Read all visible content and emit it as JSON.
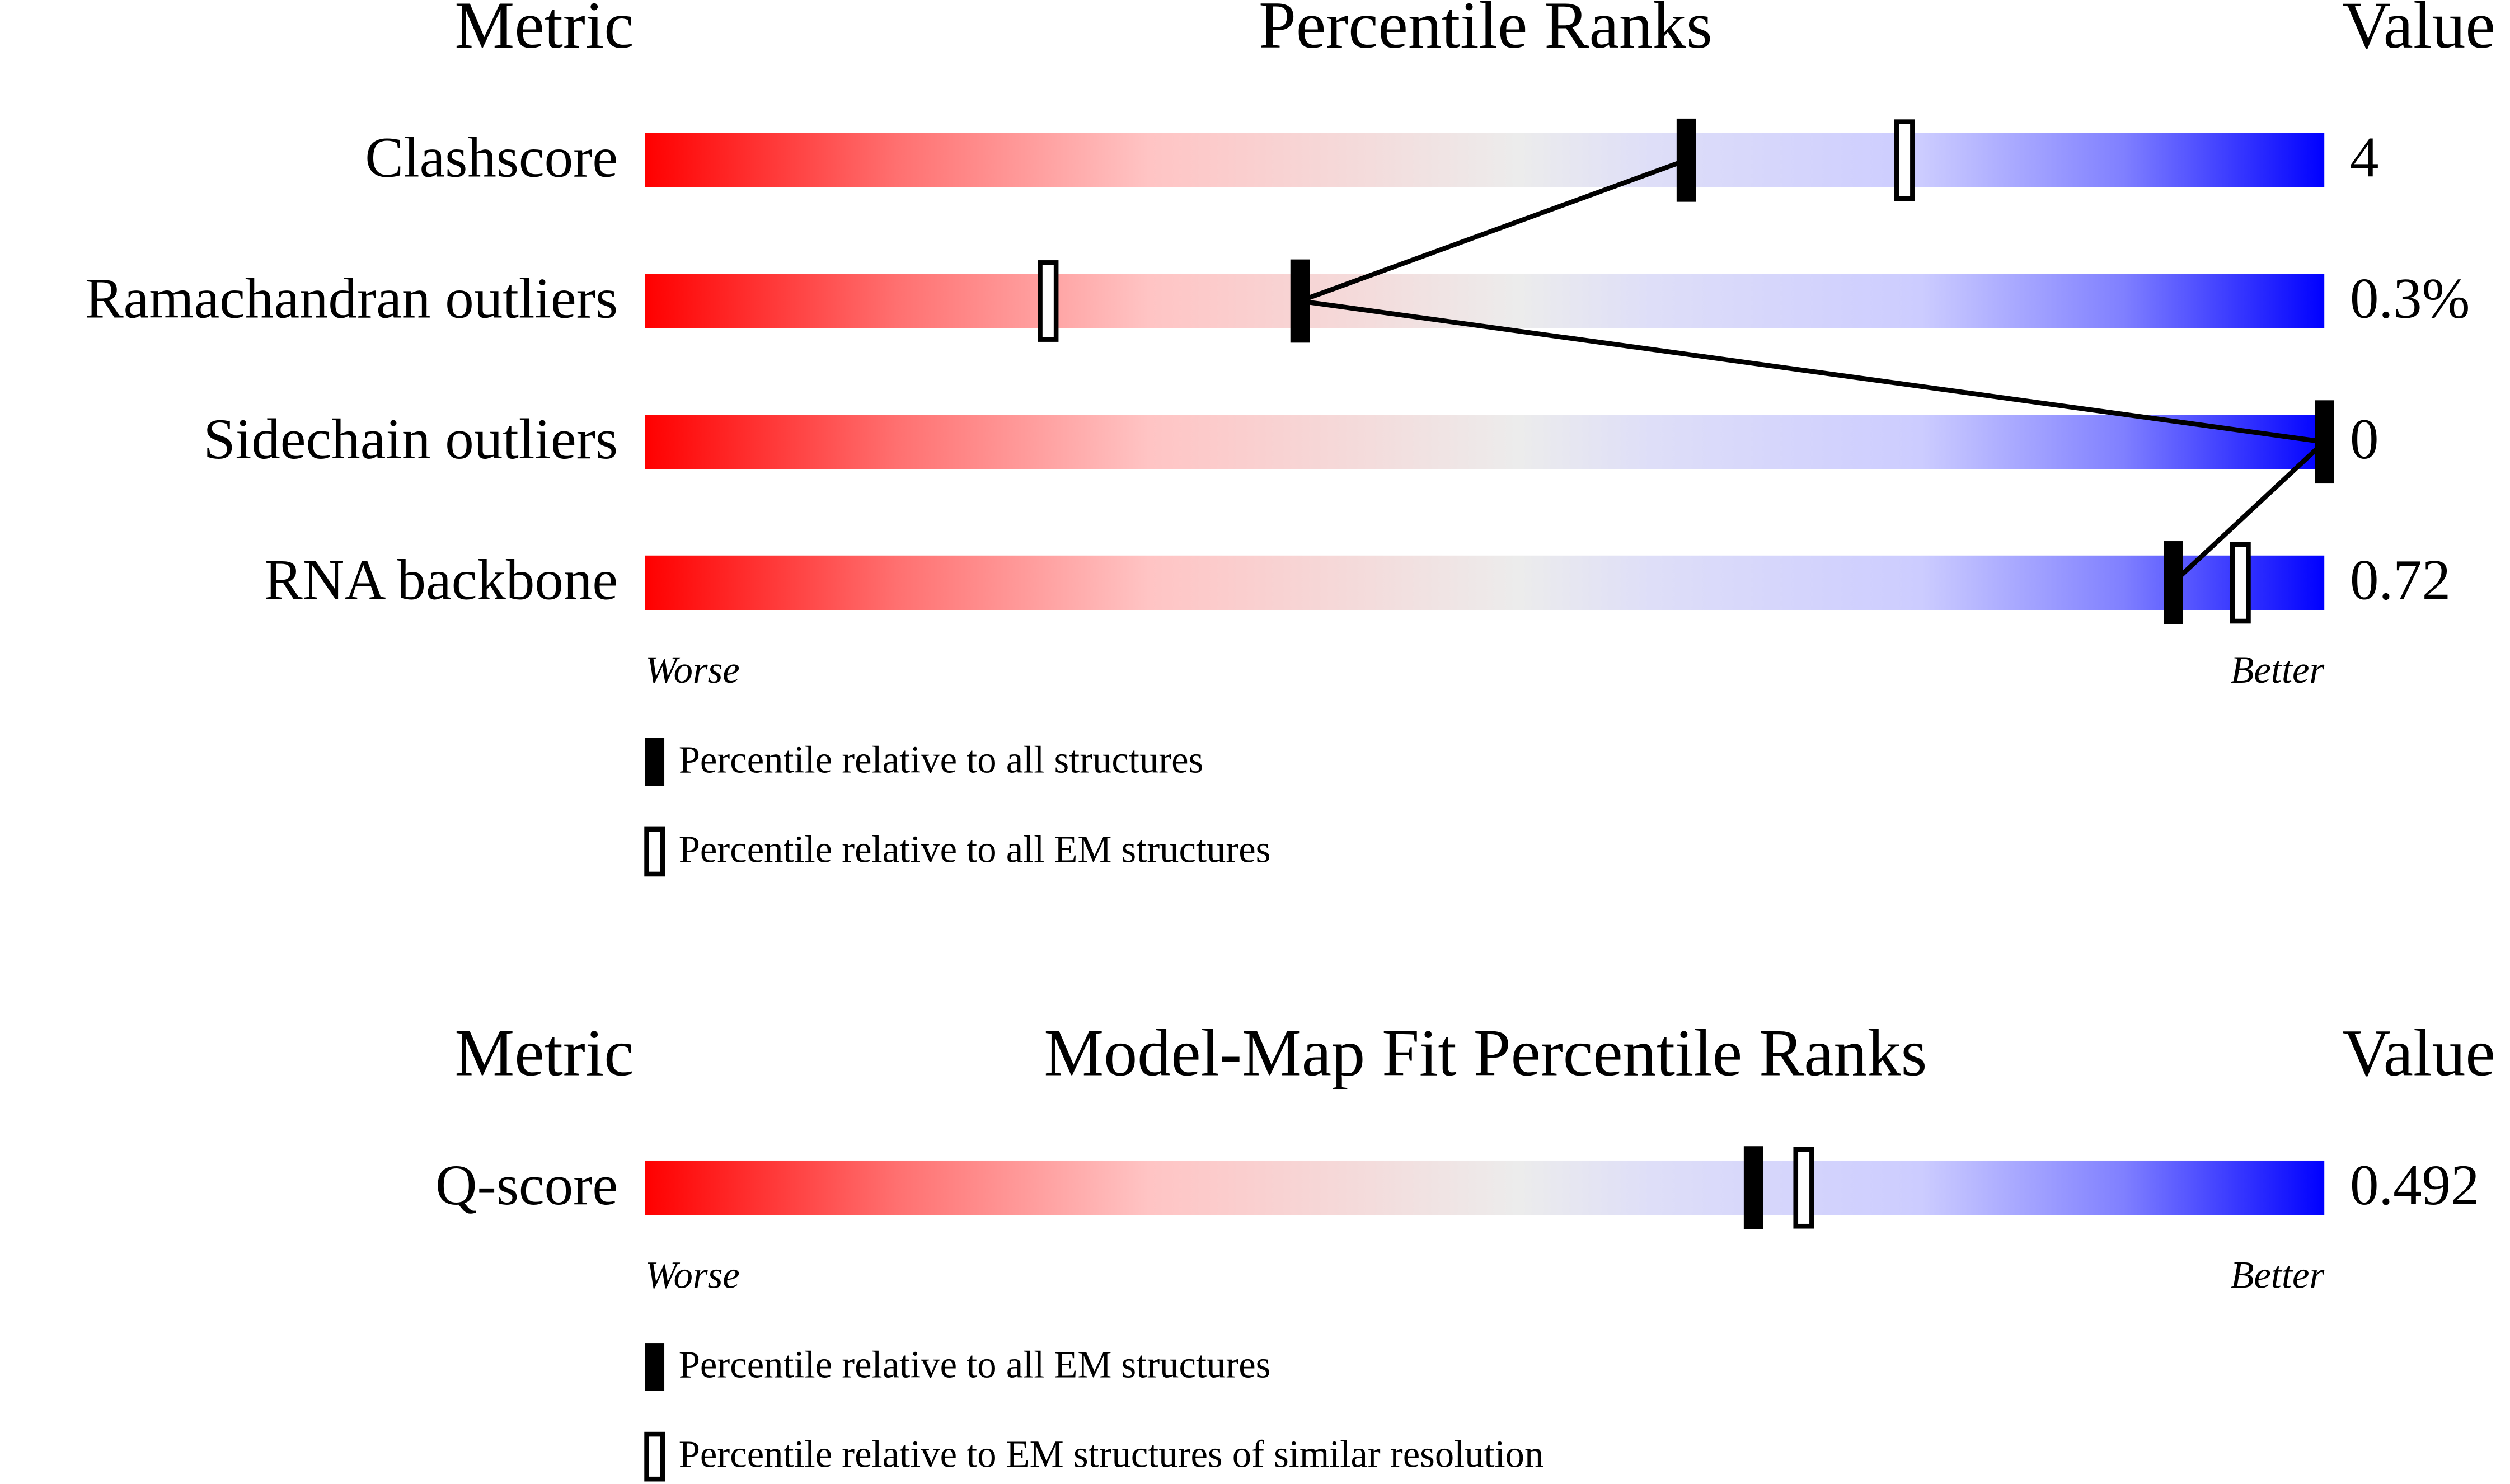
{
  "panels": [
    {
      "headers": {
        "metric": "Metric",
        "title": "Percentile Ranks",
        "value": "Value"
      },
      "xlim": [
        0,
        100
      ],
      "rows": [
        {
          "metric": "Clashscore",
          "value": "4",
          "percentile_filled": 62,
          "percentile_open": 75
        },
        {
          "metric": "Ramachandran outliers",
          "value": "0.3%",
          "percentile_filled": 39,
          "percentile_open": 24
        },
        {
          "metric": "Sidechain outliers",
          "value": "0",
          "percentile_filled": 100,
          "percentile_open": null
        },
        {
          "metric": "RNA backbone",
          "value": "0.72",
          "percentile_filled": 91,
          "percentile_open": 95
        }
      ],
      "worse": "Worse",
      "better": "Better",
      "legend": {
        "filled": "Percentile relative to all structures",
        "open": "Percentile relative to all EM structures"
      }
    },
    {
      "headers": {
        "metric": "Metric",
        "title": "Model-Map Fit Percentile Ranks",
        "value": "Value"
      },
      "xlim": [
        0,
        100
      ],
      "rows": [
        {
          "metric": "Q-score",
          "value": "0.492",
          "percentile_filled": 66,
          "percentile_open": 69
        }
      ],
      "worse": "Worse",
      "better": "Better",
      "legend": {
        "filled": "Percentile relative to all EM structures",
        "open": "Percentile relative to EM structures of similar resolution"
      }
    }
  ]
}
